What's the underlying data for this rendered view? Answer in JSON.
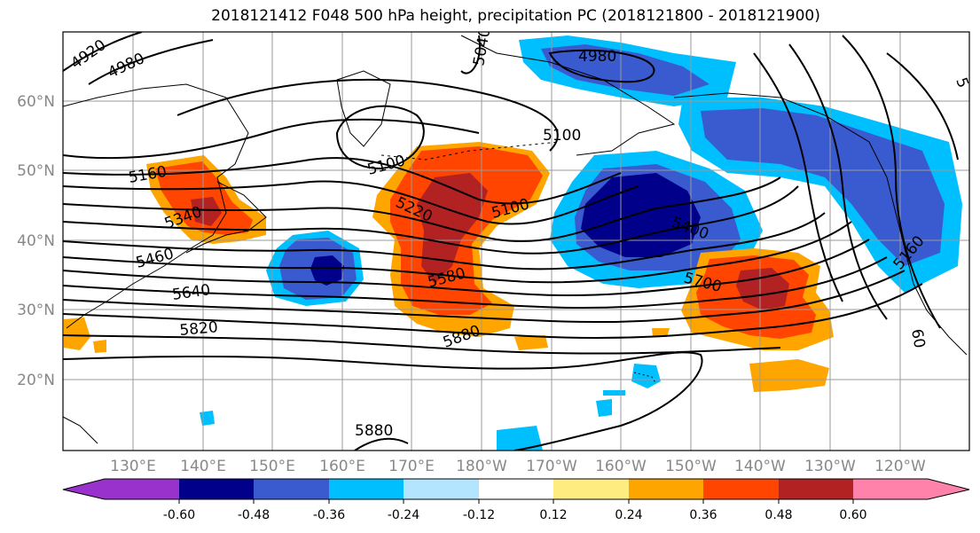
{
  "title": "2018121412 F048 500 hPa height, precipitation PC (2018121800 - 2018121900)",
  "latitude_labels": [
    "60°N",
    "50°N",
    "40°N",
    "30°N",
    "20°N"
  ],
  "longitude_labels": [
    "130°E",
    "140°E",
    "150°E",
    "160°E",
    "170°E",
    "180°W",
    "170°W",
    "160°W",
    "150°W",
    "140°W",
    "130°W",
    "120°W"
  ],
  "height_contour_labels": [
    "4920",
    "4980",
    "5040",
    "4980",
    "5160",
    "5100",
    "5100",
    "5220",
    "5100",
    "5340",
    "5400",
    "5460",
    "5580",
    "5640",
    "5700",
    "5820",
    "5880",
    "5880",
    "5160",
    "60",
    "5"
  ],
  "colorbar": {
    "ticks": [
      "-0.60",
      "-0.48",
      "-0.36",
      "-0.24",
      "-0.12",
      "0.12",
      "0.24",
      "0.36",
      "0.48",
      "0.60"
    ],
    "colors": [
      "#9932cc",
      "#00008b",
      "#3a5bcf",
      "#00bfff",
      "#b3e5ff",
      "#ffffff",
      "#ffec80",
      "#ffa500",
      "#ff4500",
      "#b22222",
      "#ff82ab"
    ]
  },
  "fill_colors": {
    "neg_strong": "#00008b",
    "neg_mid": "#3a5bcf",
    "neg_light": "#00bfff",
    "pos_light": "#ffa500",
    "pos_mid": "#ff4500",
    "pos_strong": "#b22222"
  }
}
